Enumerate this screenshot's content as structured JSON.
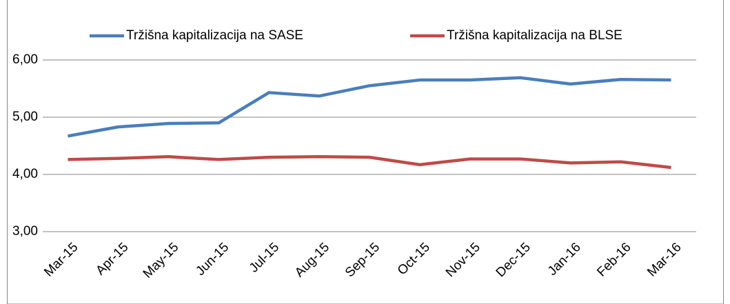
{
  "chart_data": {
    "type": "line",
    "categories": [
      "Mar-15",
      "Apr-15",
      "May-15",
      "Jun-15",
      "Jul-15",
      "Aug-15",
      "Sep-15",
      "Oct-15",
      "Nov-15",
      "Dec-15",
      "Jan-16",
      "Feb-16",
      "Mar-16"
    ],
    "series": [
      {
        "name": "Tržišna kapitalizacija na SASE",
        "color": "#4a7ebb",
        "values": [
          4.67,
          4.83,
          4.89,
          4.9,
          5.43,
          5.37,
          5.55,
          5.65,
          5.65,
          5.69,
          5.58,
          5.66,
          5.65
        ]
      },
      {
        "name": "Tržišna kapitalizacija na BLSE",
        "color": "#be4b48",
        "values": [
          4.26,
          4.28,
          4.31,
          4.26,
          4.3,
          4.31,
          4.3,
          4.17,
          4.27,
          4.27,
          4.2,
          4.22,
          4.12
        ]
      }
    ],
    "ylim": [
      3,
      6
    ],
    "yticks": [
      {
        "value": 3,
        "label": "3,00"
      },
      {
        "value": 4,
        "label": "4,00"
      },
      {
        "value": 5,
        "label": "5,00"
      },
      {
        "value": 6,
        "label": "6,00"
      }
    ],
    "grid": true,
    "legend": "top"
  }
}
